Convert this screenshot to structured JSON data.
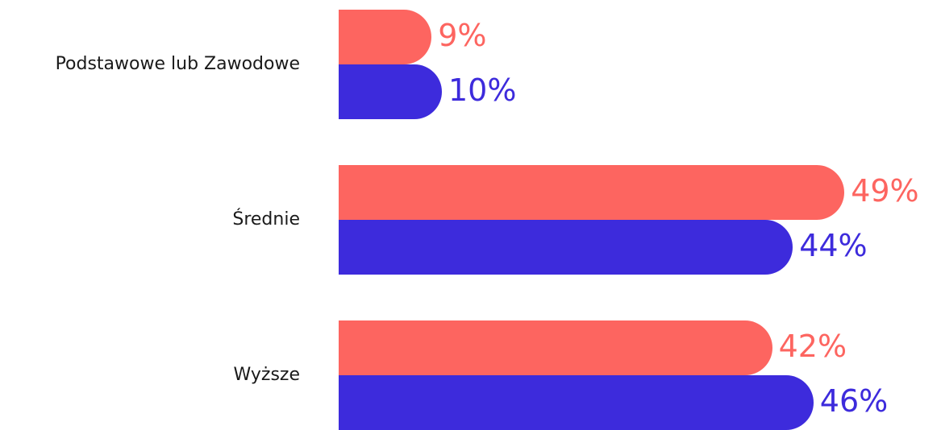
{
  "chart_data": {
    "type": "bar",
    "orientation": "horizontal",
    "categories": [
      "Podstawowe lub Zawodowe",
      "Średnie",
      "Wyższe"
    ],
    "series": [
      {
        "color": "#fd6560",
        "values": [
          9,
          49,
          42
        ],
        "labels": [
          "9%",
          "49%",
          "42%"
        ]
      },
      {
        "color": "#3d2bdc",
        "values": [
          10,
          44,
          46
        ],
        "labels": [
          "10%",
          "44%",
          "46%"
        ]
      }
    ],
    "unit": "%",
    "legend": "none",
    "grid": false
  }
}
